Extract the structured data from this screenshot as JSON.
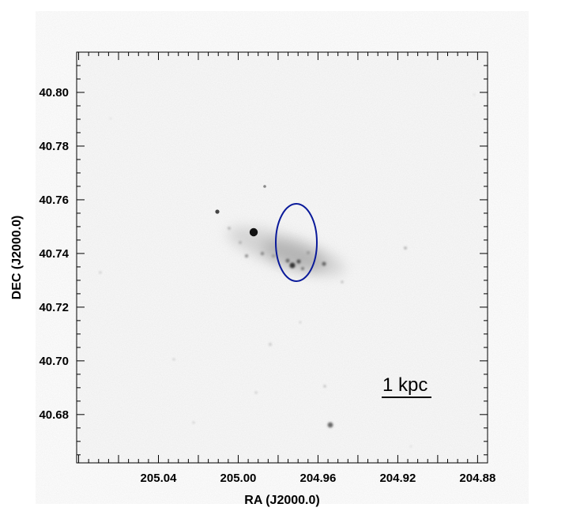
{
  "image": {
    "xlabel": "RA (J2000.0)",
    "ylabel": "DEC (J2000.0)",
    "x_axis": {
      "direction": "decreasing-right",
      "range": [
        205.081,
        204.875
      ],
      "ticks": [
        205.04,
        205.0,
        204.96,
        204.92,
        204.88
      ],
      "tick_labels": [
        "205.04",
        "205.00",
        "204.96",
        "204.92",
        "204.88"
      ]
    },
    "y_axis": {
      "range": [
        40.662,
        40.815
      ],
      "ticks": [
        40.68,
        40.7,
        40.72,
        40.74,
        40.76,
        40.78,
        40.8
      ],
      "tick_labels": [
        "40.68",
        "40.70",
        "40.72",
        "40.74",
        "40.76",
        "40.78",
        "40.80"
      ]
    },
    "colormap": "inverted-grayscale",
    "scale_bar_label": "1 kpc",
    "aperture": {
      "shape": "ellipse",
      "color": "#0a1a9a",
      "ra": 204.9615,
      "dec": 40.7443
    }
  }
}
